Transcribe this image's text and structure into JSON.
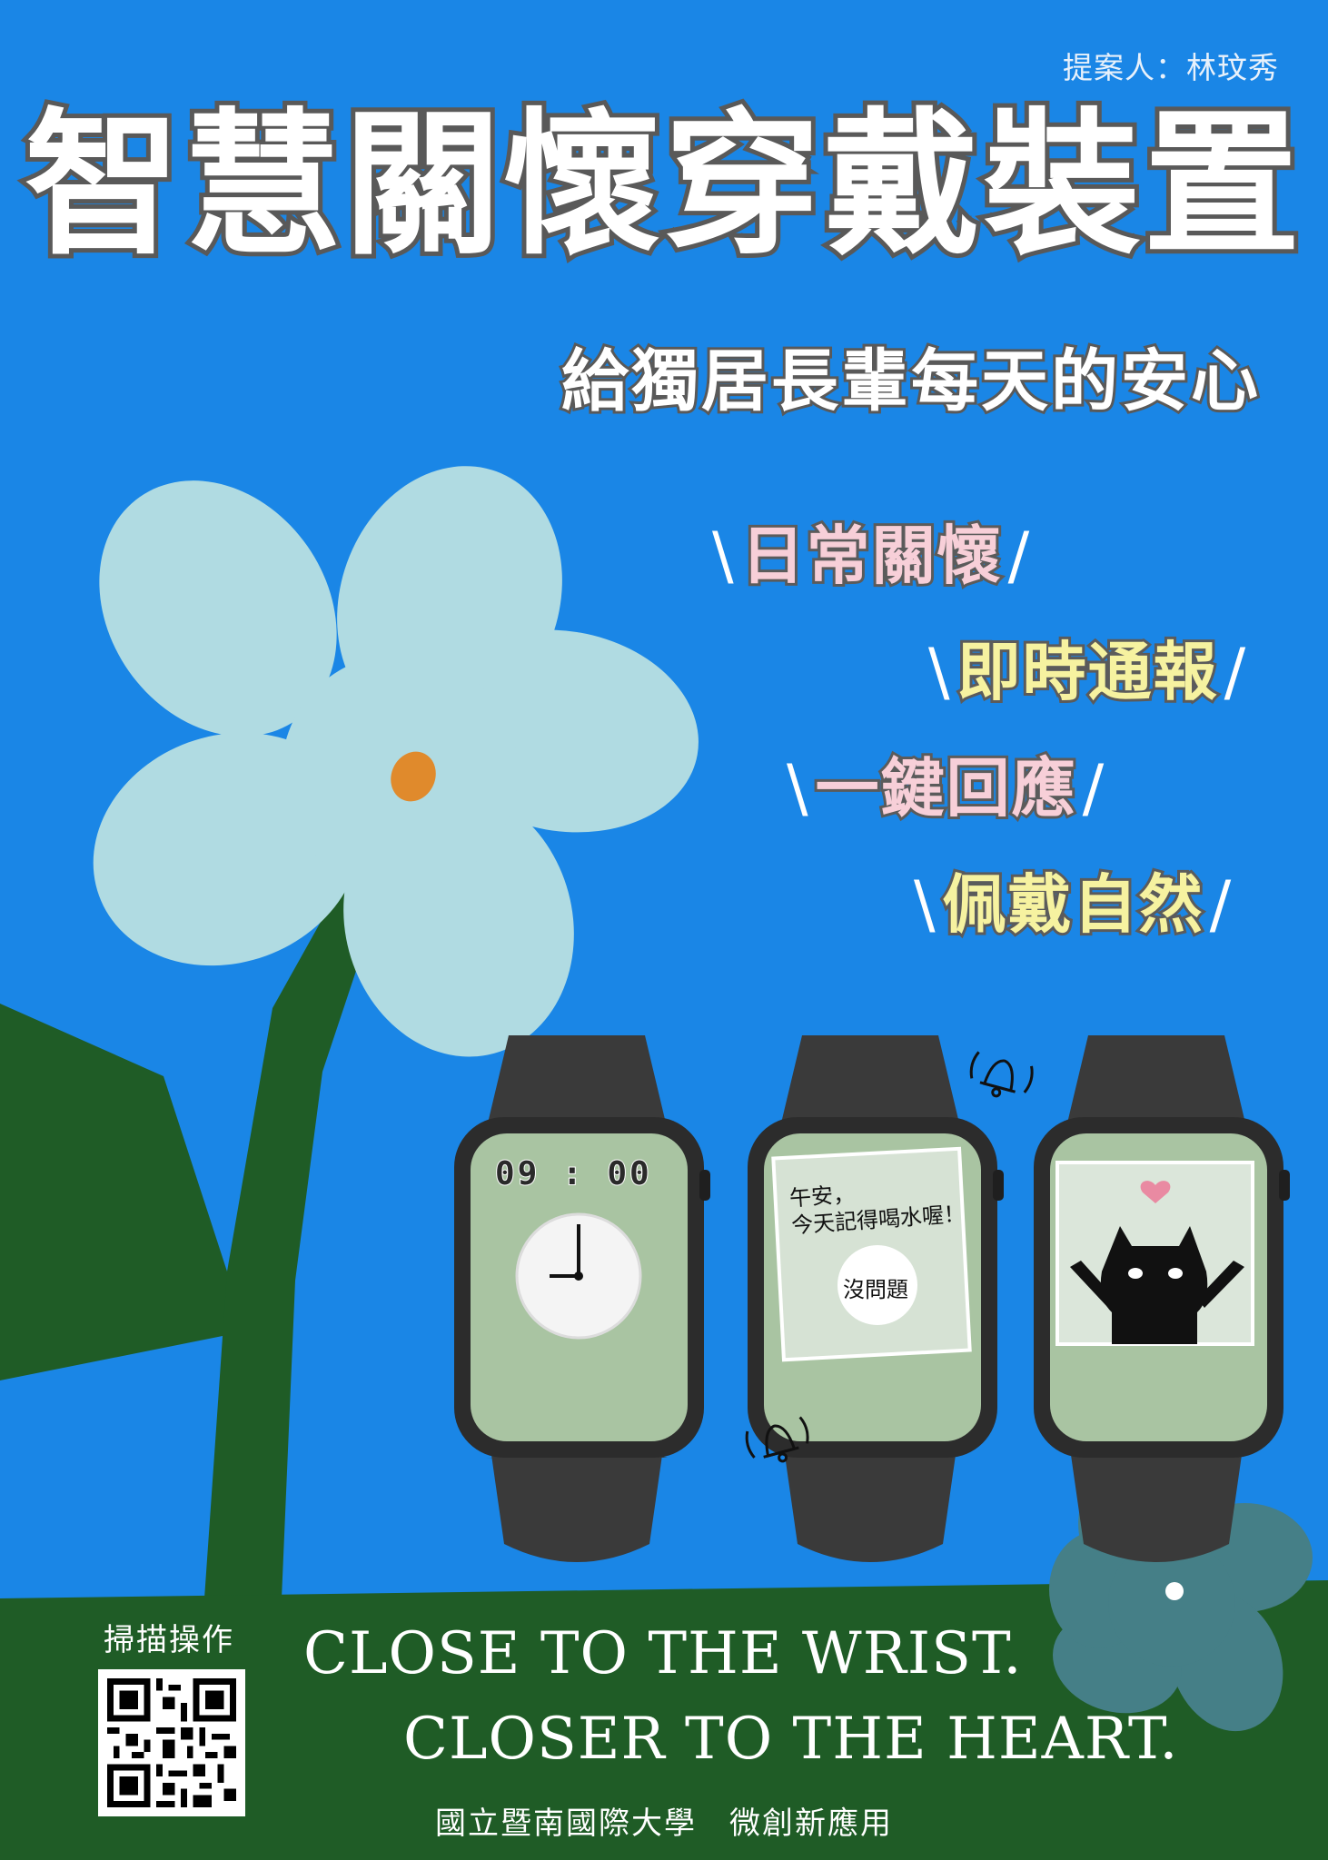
{
  "proposer": "提案人：林玟秀",
  "title": "智慧關懷穿戴裝置",
  "subtitle": "給獨居長輩每天的安心",
  "features": [
    {
      "label": "日常關懷",
      "color": "#f7cfd8"
    },
    {
      "label": "即時通報",
      "color": "#f6f2a0"
    },
    {
      "label": "一鍵回應",
      "color": "#f7cfd8"
    },
    {
      "label": "佩戴自然",
      "color": "#f6f2a0"
    }
  ],
  "slash_left": "\\",
  "slash_right": "/",
  "watches": {
    "clock": {
      "time": "09 : 00"
    },
    "reminder": {
      "line1": "午安，",
      "line2": "今天記得喝水喔！",
      "button": "沒問題"
    },
    "cat": {}
  },
  "scan": {
    "label": "掃描操作"
  },
  "slogan": {
    "line1": "CLOSE TO THE WRIST.",
    "line2": "CLOSER TO THE HEART."
  },
  "footer": "國立暨南國際大學　微創新應用",
  "colors": {
    "sky": "#1a86e6",
    "ground": "#1f5c26",
    "petal": "#b0dbe2",
    "small_petal": "#457f87",
    "center": "#e08a2c"
  }
}
